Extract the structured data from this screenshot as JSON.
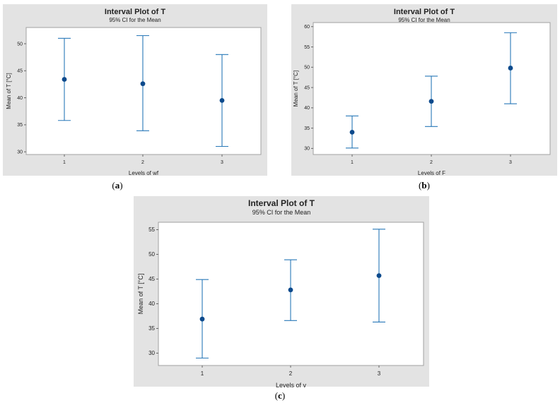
{
  "chart_data": [
    {
      "id": "a",
      "type": "interval",
      "title": "Interval Plot of T",
      "subtitle": "95% CI for the Mean",
      "xlabel": "Levels of wf",
      "ylabel": "Mean of T [°C]",
      "categories": [
        "1",
        "2",
        "3"
      ],
      "means": [
        43.4,
        42.6,
        39.5
      ],
      "lower": [
        35.8,
        33.9,
        31.0
      ],
      "upper": [
        51.0,
        51.5,
        48.0
      ],
      "ylim": [
        29.5,
        53
      ],
      "yticks": [
        30,
        35,
        40,
        45,
        50
      ],
      "caption_letter": "a",
      "color": "#2878b8",
      "point_color": "#0d4a8c"
    },
    {
      "id": "b",
      "type": "interval",
      "title": "Interval Plot of T",
      "subtitle": "95% CI for the Mean",
      "xlabel": "Levels of F",
      "ylabel": "Mean of T [°C]",
      "categories": [
        "1",
        "2",
        "3"
      ],
      "means": [
        34.0,
        41.6,
        49.8
      ],
      "lower": [
        30.1,
        35.4,
        41.0
      ],
      "upper": [
        38.0,
        47.8,
        58.5
      ],
      "ylim": [
        28.5,
        61
      ],
      "yticks": [
        30,
        35,
        40,
        45,
        50,
        55,
        60
      ],
      "caption_letter": "b",
      "color": "#2878b8",
      "point_color": "#0d4a8c"
    },
    {
      "id": "c",
      "type": "interval",
      "title": "Interval Plot of T",
      "subtitle": "95% CI for the Mean",
      "xlabel": "Levels of v",
      "ylabel": "Mean of T [°C]",
      "categories": [
        "1",
        "2",
        "3"
      ],
      "means": [
        36.9,
        42.8,
        45.7
      ],
      "lower": [
        29.0,
        36.6,
        36.3
      ],
      "upper": [
        44.9,
        48.9,
        55.1
      ],
      "ylim": [
        27.5,
        56.5
      ],
      "yticks": [
        30,
        35,
        40,
        45,
        50,
        55
      ],
      "caption_letter": "c",
      "color": "#2878b8",
      "point_color": "#0d4a8c"
    }
  ]
}
